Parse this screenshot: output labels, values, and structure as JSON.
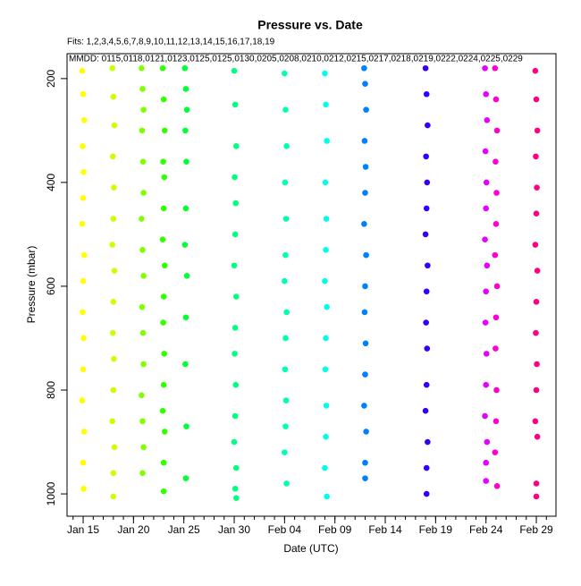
{
  "chart_data": {
    "type": "scatter",
    "title": "Pressure  vs. Date",
    "subtitle": "Fits: 1,2,3,4,5,6,7,8,9,10,11,12,13,14,15,16,17,18,19",
    "annotation": "MMDD: 0115,0118,0121,0123,0125,0125,0130,0205,0208,0210,0212,0215,0217,0218,0219,0222,0224,0225,0229",
    "x_label": "Date (UTC)",
    "y_label": "Pressure (mbar)",
    "xlim": [
      13.4,
      61.95
    ],
    "ylim": [
      152,
      1043
    ],
    "y_reversed": true,
    "xticks": [
      {
        "value": 15,
        "label": "Jan 15"
      },
      {
        "value": 20,
        "label": "Jan 20"
      },
      {
        "value": 25,
        "label": "Jan 25"
      },
      {
        "value": 30,
        "label": "Jan 30"
      },
      {
        "value": 35,
        "label": "Feb 04"
      },
      {
        "value": 40,
        "label": "Feb 09"
      },
      {
        "value": 45,
        "label": "Feb 14"
      },
      {
        "value": 50,
        "label": "Feb 19"
      },
      {
        "value": 55,
        "label": "Feb 24"
      },
      {
        "value": 60,
        "label": "Feb 29"
      }
    ],
    "xminorticks": [
      14,
      15,
      16,
      17,
      18,
      19,
      20,
      21,
      22,
      23,
      24,
      25,
      26,
      27,
      28,
      29,
      30,
      31,
      32,
      33,
      34,
      35,
      36,
      37,
      38,
      39,
      40,
      41,
      42,
      43,
      44,
      45,
      46,
      47,
      48,
      49,
      50,
      51,
      52,
      53,
      54,
      55,
      56,
      57,
      58,
      59,
      60,
      61
    ],
    "yticks": [
      200,
      400,
      600,
      800,
      1000
    ],
    "series": [
      {
        "color": "#ffff00",
        "x": [
          14.9,
          15.0,
          15.1,
          14.95,
          15.05,
          15.0,
          14.9,
          15.1,
          15.0,
          14.95,
          15.05,
          15.0,
          14.9,
          15.1,
          15.0,
          15.05
        ],
        "values": [
          185,
          230,
          280,
          330,
          380,
          430,
          480,
          540,
          590,
          650,
          700,
          760,
          820,
          880,
          940,
          990
        ]
      },
      {
        "color": "#ccff00",
        "x": [
          17.9,
          18.0,
          18.1,
          17.95,
          18.05,
          18.0,
          17.9,
          18.1,
          18.0,
          17.95,
          18.05,
          18.0,
          17.9,
          18.1,
          18.0,
          18.0
        ],
        "values": [
          180,
          235,
          290,
          350,
          410,
          470,
          520,
          570,
          630,
          690,
          740,
          800,
          860,
          910,
          960,
          1005
        ]
      },
      {
        "color": "#80ff00",
        "x": [
          20.8,
          20.9,
          21.0,
          20.85,
          20.95,
          21.0,
          20.8,
          20.9,
          21.0,
          20.85,
          20.95,
          21.0,
          20.8,
          20.9,
          21.0,
          20.9
        ],
        "values": [
          180,
          220,
          260,
          300,
          360,
          420,
          470,
          530,
          580,
          640,
          690,
          750,
          810,
          860,
          910,
          960
        ]
      },
      {
        "color": "#33ff00",
        "x": [
          22.9,
          23.0,
          23.1,
          22.95,
          23.05,
          23.0,
          22.9,
          23.1,
          23.0,
          22.95,
          23.05,
          23.0,
          22.9,
          23.1,
          23.0,
          23.0
        ],
        "values": [
          180,
          240,
          300,
          360,
          390,
          450,
          510,
          560,
          620,
          670,
          730,
          790,
          840,
          880,
          940,
          995
        ]
      },
      {
        "color": "#00ff33",
        "x": [
          25.1,
          25.2,
          25.3,
          25.15,
          25.25,
          25.2,
          25.1,
          25.3,
          25.2,
          25.15,
          25.25,
          25.2
        ],
        "values": [
          180,
          220,
          260,
          300,
          360,
          450,
          520,
          580,
          660,
          750,
          870,
          970
        ]
      },
      {
        "color": "#00ff80",
        "x": [
          30.0,
          30.1,
          30.2,
          30.05,
          30.15,
          30.1,
          30.0,
          30.2,
          30.1,
          30.05,
          30.15,
          30.1,
          30.0,
          30.2,
          30.1,
          30.2
        ],
        "values": [
          185,
          250,
          330,
          390,
          440,
          500,
          560,
          620,
          680,
          730,
          790,
          850,
          900,
          950,
          990,
          1008
        ]
      },
      {
        "color": "#00ffb3",
        "x": [
          35.0,
          35.1,
          35.2,
          35.05,
          35.15,
          35.1,
          35.0,
          35.2,
          35.1,
          35.05,
          35.15,
          35.1,
          35.0,
          35.2
        ],
        "values": [
          190,
          260,
          330,
          400,
          470,
          540,
          590,
          650,
          700,
          760,
          820,
          870,
          920,
          980
        ]
      },
      {
        "color": "#00ffe6",
        "x": [
          39.0,
          39.1,
          39.2,
          39.05,
          39.15,
          39.1,
          39.0,
          39.2,
          39.1,
          39.05,
          39.15,
          39.1,
          39.0,
          39.2
        ],
        "values": [
          190,
          250,
          320,
          400,
          470,
          530,
          590,
          640,
          700,
          760,
          830,
          890,
          950,
          1005
        ]
      },
      {
        "color": "#0080ff",
        "x": [
          42.9,
          43.0,
          43.1,
          42.95,
          43.05,
          43.0,
          42.9,
          43.1,
          43.0,
          42.95,
          43.05,
          43.0,
          42.9,
          43.1,
          43.0,
          43.0
        ],
        "values": [
          180,
          210,
          260,
          320,
          370,
          420,
          480,
          540,
          600,
          650,
          710,
          770,
          830,
          880,
          940,
          970
        ]
      },
      {
        "color": "#3300ff",
        "x": [
          49.0,
          49.1,
          49.2,
          49.05,
          49.15,
          49.1,
          49.0,
          49.2,
          49.1,
          49.05,
          49.15,
          49.1,
          49.0,
          49.2,
          49.1,
          49.1
        ],
        "values": [
          180,
          230,
          290,
          350,
          400,
          450,
          500,
          560,
          610,
          670,
          720,
          790,
          840,
          900,
          950,
          1000
        ]
      },
      {
        "color": "#e600ff",
        "x": [
          54.9,
          55.0,
          55.1,
          54.95,
          55.05,
          55.0,
          54.9,
          55.1,
          55.0,
          54.95,
          55.05,
          55.0,
          54.9,
          55.1,
          55.0,
          55.0
        ],
        "values": [
          180,
          230,
          280,
          340,
          400,
          450,
          510,
          560,
          610,
          670,
          730,
          790,
          850,
          900,
          940,
          975
        ]
      },
      {
        "color": "#ff00cc",
        "x": [
          55.9,
          56.0,
          56.1,
          55.95,
          56.05,
          56.0,
          55.9,
          56.1,
          56.0,
          55.95,
          56.05,
          56.0,
          55.9,
          56.1
        ],
        "values": [
          180,
          240,
          300,
          360,
          420,
          480,
          540,
          600,
          660,
          720,
          800,
          860,
          920,
          985
        ]
      },
      {
        "color": "#ff0080",
        "x": [
          59.9,
          60.0,
          60.1,
          59.95,
          60.05,
          60.0,
          59.9,
          60.1,
          60.0,
          59.95,
          60.05,
          60.0,
          59.9,
          60.1,
          60.0,
          60.0
        ],
        "values": [
          185,
          240,
          300,
          350,
          410,
          460,
          520,
          570,
          630,
          690,
          750,
          800,
          860,
          890,
          980,
          1005
        ]
      }
    ]
  }
}
